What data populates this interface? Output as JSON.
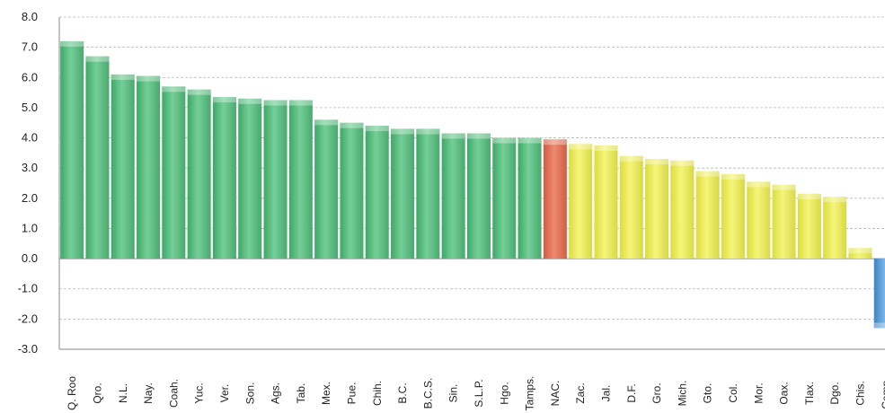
{
  "chart_data": {
    "type": "bar",
    "title": "",
    "xlabel": "",
    "ylabel": "",
    "ylim": [
      -3.0,
      8.0
    ],
    "yticks": [
      "8.0",
      "7.0",
      "6.0",
      "5.0",
      "4.0",
      "3.0",
      "2.0",
      "1.0",
      "0.0",
      "-1.0",
      "-2.0",
      "-3.0"
    ],
    "grid": true,
    "legend": "none",
    "categories": [
      "Q. Roo",
      "Qro.",
      "N.L.",
      "Nay.",
      "Coah.",
      "Yuc.",
      "Ver.",
      "Son.",
      "Ags.",
      "Tab.",
      "Mex.",
      "Pue.",
      "Chih.",
      "B.C.",
      "B.C.S.",
      "Sin.",
      "S.L.P.",
      "Hgo.",
      "Tamps.",
      "NAC.",
      "Zac.",
      "Jal.",
      "D.F.",
      "Gro.",
      "Mich.",
      "Gto.",
      "Col.",
      "Mor.",
      "Oax.",
      "Tlax.",
      "Dgo.",
      "Chis.",
      "Camp."
    ],
    "values": [
      7.2,
      6.7,
      6.1,
      6.05,
      5.7,
      5.6,
      5.35,
      5.3,
      5.25,
      5.25,
      4.6,
      4.5,
      4.4,
      4.3,
      4.3,
      4.15,
      4.15,
      4.0,
      4.0,
      3.95,
      3.8,
      3.75,
      3.4,
      3.3,
      3.25,
      2.9,
      2.8,
      2.55,
      2.45,
      2.15,
      2.05,
      0.35,
      -2.3
    ],
    "colors": {
      "above_national": "#66c28a",
      "national": "#e0755b",
      "below_national": "#ecec66",
      "negative": "#5b9bd5"
    }
  }
}
